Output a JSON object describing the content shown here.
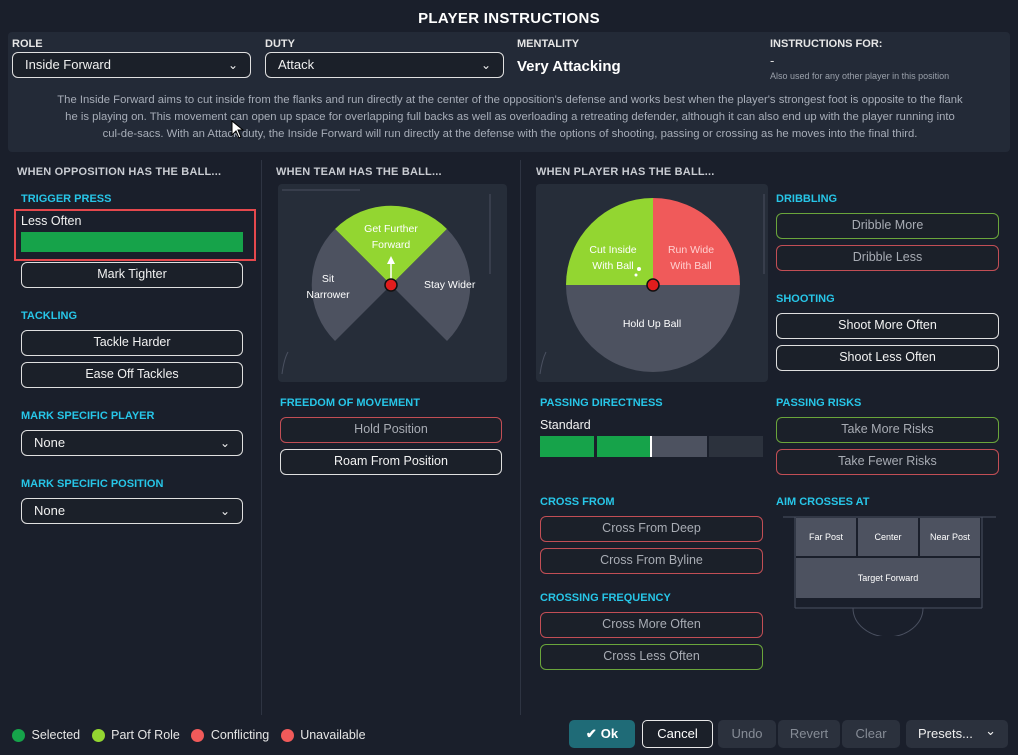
{
  "title": "PLAYER INSTRUCTIONS",
  "role": {
    "label": "ROLE",
    "value": "Inside Forward"
  },
  "duty": {
    "label": "DUTY",
    "value": "Attack"
  },
  "mentality": {
    "label": "MENTALITY",
    "value": "Very Attacking"
  },
  "instructions_for": {
    "label": "INSTRUCTIONS FOR:",
    "value": "-",
    "note": "Also used for any other player in this position"
  },
  "description": [
    "The Inside Forward aims to cut inside from the flanks and run directly at the center of the opposition's defense and works best when the player's strongest foot is opposite to the flank",
    "he is playing on. This movement can open up space for overlapping full backs as well as overloading a retreating defender, although it can also end up with the player running into",
    "cul-de-sacs. With an Attack duty, the Inside Forward will run directly at the defense with the options of shooting, passing or crossing as he moves into the final third."
  ],
  "opposition": {
    "header": "WHEN OPPOSITION HAS THE BALL...",
    "trigger_press": {
      "label": "TRIGGER PRESS",
      "value": "Less Often",
      "level": 1.0
    },
    "mark_tighter": "Mark Tighter",
    "tackling": {
      "label": "TACKLING",
      "options": [
        "Tackle Harder",
        "Ease Off Tackles"
      ]
    },
    "mark_player": {
      "label": "MARK SPECIFIC PLAYER",
      "value": "None"
    },
    "mark_position": {
      "label": "MARK SPECIFIC POSITION",
      "value": "None"
    }
  },
  "team": {
    "header": "WHEN TEAM HAS THE BALL...",
    "wheel": {
      "top_line1": "Get Further",
      "top_line2": "Forward",
      "left_line1": "Sit",
      "left_line2": "Narrower",
      "right": "Stay Wider"
    },
    "freedom": {
      "label": "FREEDOM OF MOVEMENT",
      "options": [
        "Hold Position",
        "Roam From Position"
      ]
    }
  },
  "player": {
    "header": "WHEN PLAYER HAS THE BALL...",
    "wheel": {
      "left_line1": "Cut Inside",
      "left_line2": "With Ball",
      "right_line1": "Run Wide",
      "right_line2": "With Ball",
      "bottom": "Hold Up Ball"
    },
    "passing_directness": {
      "label": "PASSING DIRECTNESS",
      "value": "Standard",
      "level": 0.5
    },
    "cross_from": {
      "label": "CROSS FROM",
      "options": [
        "Cross From Deep",
        "Cross From Byline"
      ]
    },
    "crossing_frequency": {
      "label": "CROSSING FREQUENCY",
      "options": [
        "Cross More Often",
        "Cross Less Often"
      ]
    },
    "dribbling": {
      "label": "DRIBBLING",
      "options": [
        "Dribble More",
        "Dribble Less"
      ]
    },
    "shooting": {
      "label": "SHOOTING",
      "options": [
        "Shoot More Often",
        "Shoot Less Often"
      ]
    },
    "passing_risks": {
      "label": "PASSING RISKS",
      "options": [
        "Take More Risks",
        "Take Fewer Risks"
      ]
    },
    "aim_crosses": {
      "label": "AIM CROSSES AT",
      "far": "Far Post",
      "center": "Center",
      "near": "Near Post",
      "target": "Target Forward"
    }
  },
  "legend": [
    "Selected",
    "Part Of Role",
    "Conflicting",
    "Unavailable"
  ],
  "footer": {
    "ok": "Ok",
    "cancel": "Cancel",
    "undo": "Undo",
    "revert": "Revert",
    "clear": "Clear",
    "presets": "Presets..."
  },
  "colors": {
    "selected": "#16a34a",
    "part_of_role": "#93d631",
    "conflicting": "#f05a5a",
    "unavailable": "#f05a5a",
    "accent": "#27c6e8"
  }
}
